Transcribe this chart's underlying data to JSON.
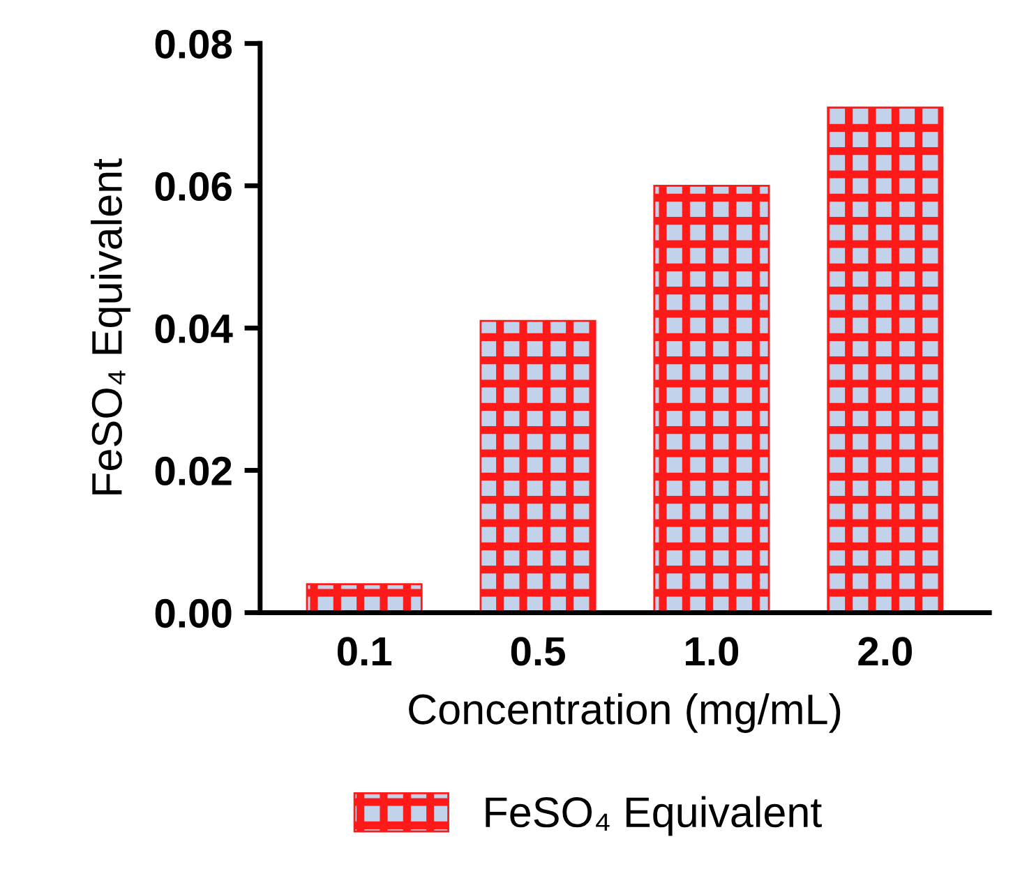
{
  "chart_data": {
    "type": "bar",
    "xlabel": "Concentration (mg/mL)",
    "ylabel": "FeSO₄ Equivalent",
    "categories": [
      "0.1",
      "0.5",
      "1.0",
      "2.0"
    ],
    "series": [
      {
        "name": "FeSO₄ Equivalent",
        "color": "#ff1a1a",
        "values": [
          0.004,
          0.041,
          0.06,
          0.071
        ]
      }
    ],
    "ylim": [
      0,
      0.08
    ],
    "yticks": [
      {
        "value": 0,
        "label": "0.00"
      },
      {
        "value": 0.02,
        "label": "0.02"
      },
      {
        "value": 0.04,
        "label": "0.04"
      },
      {
        "value": 0.06,
        "label": "0.06"
      },
      {
        "value": 0.08,
        "label": "0.08"
      }
    ],
    "grid": false,
    "legend": "bottom"
  }
}
